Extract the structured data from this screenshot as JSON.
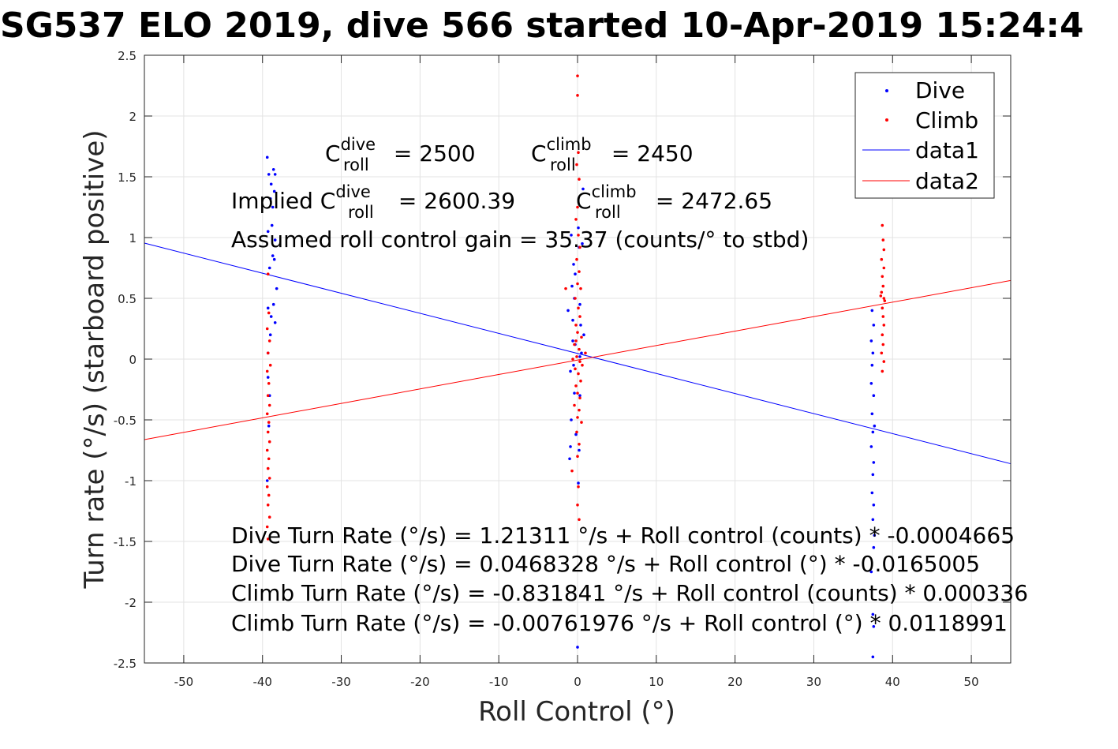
{
  "chart_data": {
    "type": "scatter",
    "title": "SG537 ELO 2019, dive 566 started 10-Apr-2019 15:24:4",
    "xlabel": "Roll Control (°)",
    "ylabel": "Turn rate (°/s) (starboard positive)",
    "xlim": [
      -55,
      55
    ],
    "ylim": [
      -2.5,
      2.5
    ],
    "xticks": [
      "-50",
      "-40",
      "-30",
      "-20",
      "-10",
      "0",
      "10",
      "20",
      "30",
      "40",
      "50"
    ],
    "yticks": [
      "-2.5",
      "-2",
      "-1.5",
      "-1",
      "-0.5",
      "0",
      "0.5",
      "1",
      "1.5",
      "2",
      "2.5"
    ],
    "grid": true,
    "legend_position": "top-right",
    "legend": [
      "Dive",
      "Climb",
      "data1",
      "data2"
    ],
    "colors": {
      "dive": "#0000ff",
      "climb": "#ff0000"
    },
    "series": [
      {
        "name": "Dive",
        "marker": "dot",
        "color": "#0000ff",
        "points": [
          [
            -39.4,
            1.66
          ],
          [
            -39.2,
            1.52
          ],
          [
            -38.9,
            1.44
          ],
          [
            -38.6,
            1.56
          ],
          [
            -38.4,
            1.52
          ],
          [
            -39.0,
            1.32
          ],
          [
            -38.7,
            1.25
          ],
          [
            -38.5,
            1.38
          ],
          [
            -39.3,
            1.05
          ],
          [
            -38.8,
            1.1
          ],
          [
            -38.4,
            0.98
          ],
          [
            -38.7,
            0.85
          ],
          [
            -39.1,
            0.75
          ],
          [
            -38.5,
            0.82
          ],
          [
            -38.2,
            0.58
          ],
          [
            -38.6,
            0.45
          ],
          [
            -39.3,
            0.42
          ],
          [
            -38.9,
            0.35
          ],
          [
            -38.4,
            0.3
          ],
          [
            -39.0,
            0.2
          ],
          [
            -39.3,
            -0.15
          ],
          [
            -39.2,
            -0.55
          ],
          [
            -39.4,
            -1.0
          ],
          [
            -39.1,
            -0.3
          ],
          [
            -39.3,
            0.05
          ],
          [
            -0.8,
            1.02
          ],
          [
            -0.5,
            0.78
          ],
          [
            -0.7,
            0.6
          ],
          [
            0.1,
            1.08
          ],
          [
            0.2,
            0.92
          ],
          [
            0.6,
            0.95
          ],
          [
            -0.4,
            0.5
          ],
          [
            0.3,
            0.45
          ],
          [
            -0.6,
            0.32
          ],
          [
            0.4,
            0.28
          ],
          [
            -0.3,
            0.12
          ],
          [
            0.5,
            0.05
          ],
          [
            -0.9,
            -0.1
          ],
          [
            -0.4,
            -0.28
          ],
          [
            0.3,
            -0.3
          ],
          [
            -0.8,
            -0.5
          ],
          [
            -0.2,
            -0.62
          ],
          [
            0.2,
            -0.75
          ],
          [
            -0.9,
            -0.72
          ],
          [
            -1.0,
            -0.82
          ],
          [
            0.1,
            -1.02
          ],
          [
            -0.6,
            0.15
          ],
          [
            0.8,
            0.2
          ],
          [
            -0.5,
            -0.05
          ],
          [
            0.3,
            0.02
          ],
          [
            0.0,
            -2.37
          ],
          [
            0.7,
            1.4
          ],
          [
            -1.2,
            0.4
          ],
          [
            -0.3,
            0.7
          ],
          [
            37.4,
            0.4
          ],
          [
            37.6,
            0.28
          ],
          [
            37.3,
            0.15
          ],
          [
            37.5,
            0.05
          ],
          [
            37.4,
            -0.05
          ],
          [
            37.6,
            -0.3
          ],
          [
            37.4,
            -0.45
          ],
          [
            37.5,
            -0.6
          ],
          [
            37.3,
            -0.72
          ],
          [
            37.6,
            -0.85
          ],
          [
            37.5,
            -0.95
          ],
          [
            37.4,
            -1.1
          ],
          [
            37.6,
            -1.2
          ],
          [
            37.5,
            -1.32
          ],
          [
            37.7,
            -1.45
          ],
          [
            37.6,
            -1.55
          ],
          [
            37.3,
            -1.75
          ],
          [
            37.5,
            -2.1
          ],
          [
            37.6,
            -2.2
          ],
          [
            37.5,
            -2.45
          ],
          [
            37.3,
            -0.2
          ],
          [
            37.7,
            -0.55
          ]
        ]
      },
      {
        "name": "Climb",
        "marker": "dot",
        "color": "#ff0000",
        "points": [
          [
            -39.3,
            0.7
          ],
          [
            -39.2,
            0.38
          ],
          [
            -39.4,
            0.25
          ],
          [
            -39.1,
            0.15
          ],
          [
            -39.3,
            0.05
          ],
          [
            -39.0,
            -0.05
          ],
          [
            -39.4,
            -0.1
          ],
          [
            -39.2,
            -0.2
          ],
          [
            -39.3,
            -0.3
          ],
          [
            -39.1,
            -0.38
          ],
          [
            -39.4,
            -0.45
          ],
          [
            -39.2,
            -0.52
          ],
          [
            -39.3,
            -0.6
          ],
          [
            -39.1,
            -0.68
          ],
          [
            -39.4,
            -0.75
          ],
          [
            -39.2,
            -0.82
          ],
          [
            -39.3,
            -0.9
          ],
          [
            -39.1,
            -0.98
          ],
          [
            -39.4,
            -1.05
          ],
          [
            -39.2,
            -1.12
          ],
          [
            -39.3,
            -1.2
          ],
          [
            -39.1,
            -1.3
          ],
          [
            -39.4,
            -1.38
          ],
          [
            -39.3,
            -1.48
          ],
          [
            0.0,
            2.33
          ],
          [
            0.0,
            2.17
          ],
          [
            0.1,
            1.7
          ],
          [
            -0.1,
            1.6
          ],
          [
            0.2,
            1.48
          ],
          [
            0.0,
            1.25
          ],
          [
            -0.2,
            1.15
          ],
          [
            0.1,
            1.02
          ],
          [
            0.3,
            0.92
          ],
          [
            -0.1,
            0.82
          ],
          [
            0.2,
            0.72
          ],
          [
            0.0,
            0.62
          ],
          [
            0.4,
            0.58
          ],
          [
            -1.5,
            0.58
          ],
          [
            -0.3,
            0.5
          ],
          [
            0.1,
            0.42
          ],
          [
            0.3,
            0.35
          ],
          [
            -0.2,
            0.28
          ],
          [
            0.0,
            0.22
          ],
          [
            0.5,
            0.18
          ],
          [
            -0.4,
            0.12
          ],
          [
            0.2,
            0.08
          ],
          [
            1.0,
            0.05
          ],
          [
            -0.1,
            0.02
          ],
          [
            0.3,
            -0.02
          ],
          [
            -0.3,
            -0.08
          ],
          [
            0.1,
            -0.12
          ],
          [
            0.4,
            -0.18
          ],
          [
            -0.2,
            -0.22
          ],
          [
            0.0,
            -0.28
          ],
          [
            0.3,
            -0.32
          ],
          [
            -0.4,
            -0.38
          ],
          [
            0.2,
            -0.42
          ],
          [
            0.0,
            -0.48
          ],
          [
            0.5,
            -0.52
          ],
          [
            -0.1,
            -0.6
          ],
          [
            0.2,
            -0.7
          ],
          [
            0.0,
            -0.8
          ],
          [
            -0.7,
            -0.92
          ],
          [
            0.1,
            -1.05
          ],
          [
            0.0,
            -1.2
          ],
          [
            0.2,
            -1.32
          ],
          [
            -0.2,
            0.15
          ],
          [
            0.6,
            -0.05
          ],
          [
            -0.6,
            0.0
          ],
          [
            38.7,
            1.1
          ],
          [
            38.8,
            0.98
          ],
          [
            38.9,
            0.9
          ],
          [
            38.6,
            0.82
          ],
          [
            38.9,
            0.75
          ],
          [
            38.7,
            0.68
          ],
          [
            38.8,
            0.6
          ],
          [
            38.6,
            0.55
          ],
          [
            38.9,
            0.5
          ],
          [
            38.7,
            0.42
          ],
          [
            38.8,
            0.35
          ],
          [
            38.9,
            0.28
          ],
          [
            38.7,
            0.2
          ],
          [
            38.8,
            0.12
          ],
          [
            38.6,
            0.05
          ],
          [
            38.9,
            -0.02
          ],
          [
            38.7,
            -0.1
          ],
          [
            38.5,
            0.52
          ],
          [
            39.0,
            0.48
          ]
        ]
      },
      {
        "name": "data1",
        "type": "line",
        "color": "#0000ff",
        "x": [
          -55,
          55
        ],
        "y": [
          0.9544,
          -0.8607
        ]
      },
      {
        "name": "data2",
        "type": "line",
        "color": "#ff0000",
        "x": [
          -55,
          55
        ],
        "y": [
          -0.6621,
          0.6469
        ]
      }
    ],
    "annotations": {
      "c_dive": {
        "base": "C",
        "sup": "dive",
        "sub": "roll",
        "text": " = 2500"
      },
      "c_climb": {
        "base": "C",
        "sup": "climb",
        "sub": "roll",
        "text": " = 2450"
      },
      "implied_label": "Implied ",
      "implied_dive": {
        "base": "C",
        "sup": "dive",
        "sub": "roll",
        "text": " = 2600.39"
      },
      "implied_climb": {
        "base": "C",
        "sup": "climb",
        "sub": "roll",
        "text": " = 2472.65"
      },
      "gain": "Assumed roll control gain = 35.37 (counts/° to stbd)",
      "eq1": "Dive Turn Rate (°/s) = 1.21311 °/s + Roll control (counts) * -0.0004665",
      "eq2": "Dive Turn Rate (°/s) = 0.0468328 °/s + Roll control (°) * -0.0165005",
      "eq3": "Climb Turn Rate (°/s) = -0.831841 °/s + Roll control (counts) * 0.000336",
      "eq4": "Climb Turn Rate (°/s) = -0.00761976 °/s + Roll control (°) * 0.0118991"
    }
  }
}
